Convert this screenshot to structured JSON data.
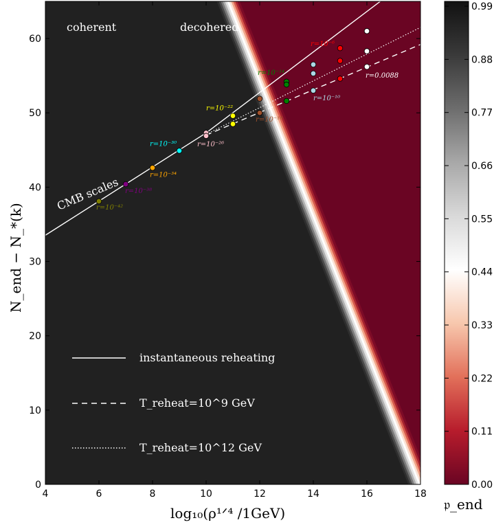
{
  "chart_data": {
    "type": "line",
    "xlabel": "log₁₀(ρ¹ᐟ⁴ /1GeV)",
    "ylabel": "N_end − N_*(k)",
    "xlim": [
      4,
      18
    ],
    "ylim": [
      0,
      65
    ],
    "x_ticks": [
      "4",
      "6",
      "8",
      "10",
      "12",
      "14",
      "16",
      "18"
    ],
    "y_ticks": [
      "0",
      "10",
      "20",
      "30",
      "40",
      "50",
      "60"
    ],
    "region_labels": [
      "coherent",
      "decohered"
    ],
    "region_colors": {
      "coherent": "#212121",
      "decohered": "#6a0523"
    },
    "boundary": {
      "x1": 10.75,
      "y1": 65,
      "x2": 18,
      "y2": 0
    },
    "colorbar": {
      "label": "𝔭_end",
      "ticks": [
        "0.00",
        "0.11",
        "0.22",
        "0.33",
        "0.44",
        "0.55",
        "0.66",
        "0.77",
        "0.88",
        "0.99"
      ],
      "colors": [
        "#6a0523",
        "#b71c2c",
        "#e2705a",
        "#f7c7ad",
        "#ffffff",
        "#d9d9d9",
        "#a8a8a8",
        "#6d6d6d",
        "#3a3a3a",
        "#111111"
      ]
    },
    "series": [
      {
        "name": "instantaneous  reheating",
        "style": "solid",
        "x": [
          3.9,
          10.0,
          16.5
        ],
        "y": [
          33.3,
          47.3,
          65.0
        ]
      },
      {
        "name": "T_reheat=10^9  GeV",
        "style": "dashed",
        "x": [
          10.0,
          18.0
        ],
        "y": [
          47.0,
          59.2
        ]
      },
      {
        "name": "T_reheat=10^12  GeV",
        "style": "dotted",
        "x": [
          10.0,
          18.0
        ],
        "y": [
          47.1,
          61.5
        ]
      }
    ],
    "cmb_label": "CMB scales",
    "points": [
      {
        "x": 6,
        "y": 38.1,
        "color": "#808000",
        "label": "r=10⁻⁴²"
      },
      {
        "x": 7,
        "y": 40.4,
        "color": "#800080",
        "label": "r=10⁻³⁸"
      },
      {
        "x": 8,
        "y": 42.6,
        "color": "#ffa500",
        "label": "r=10⁻³⁴"
      },
      {
        "x": 9,
        "y": 44.9,
        "color": "#00ffff",
        "label": "r=10⁻³⁰"
      },
      {
        "x": 10,
        "y": 47.3,
        "color": "#ffc0cb",
        "label": ""
      },
      {
        "x": 10,
        "y": 46.9,
        "color": "#ffc0cb",
        "label": "r=10⁻²⁶"
      },
      {
        "x": 11,
        "y": 49.6,
        "color": "#ffff00",
        "label": "r=10⁻²²"
      },
      {
        "x": 11,
        "y": 48.5,
        "color": "#ffff00",
        "label": ""
      },
      {
        "x": 12,
        "y": 51.9,
        "color": "#a0522d",
        "label": ""
      },
      {
        "x": 12,
        "y": 50.0,
        "color": "#a0522d",
        "label": "r=10⁻¹⁸"
      },
      {
        "x": 13,
        "y": 54.2,
        "color": "#008000",
        "label": "r=10⁻¹⁴"
      },
      {
        "x": 13,
        "y": 53.8,
        "color": "#008000",
        "label": ""
      },
      {
        "x": 13,
        "y": 51.6,
        "color": "#008000",
        "label": ""
      },
      {
        "x": 14,
        "y": 56.5,
        "color": "#add8e6",
        "label": ""
      },
      {
        "x": 14,
        "y": 55.3,
        "color": "#add8e6",
        "label": ""
      },
      {
        "x": 14,
        "y": 53.0,
        "color": "#add8e6",
        "label": "r=10⁻¹⁰"
      },
      {
        "x": 15,
        "y": 58.7,
        "color": "#ff0000",
        "label": "r=10⁻⁶"
      },
      {
        "x": 15,
        "y": 57.0,
        "color": "#ff0000",
        "label": ""
      },
      {
        "x": 15,
        "y": 54.6,
        "color": "#ff0000",
        "label": ""
      },
      {
        "x": 16,
        "y": 61.0,
        "color": "#ffffff",
        "label": ""
      },
      {
        "x": 16,
        "y": 58.3,
        "color": "#ffffff",
        "label": ""
      },
      {
        "x": 16,
        "y": 56.2,
        "color": "#ffffff",
        "label": "r=0.0088"
      }
    ]
  }
}
